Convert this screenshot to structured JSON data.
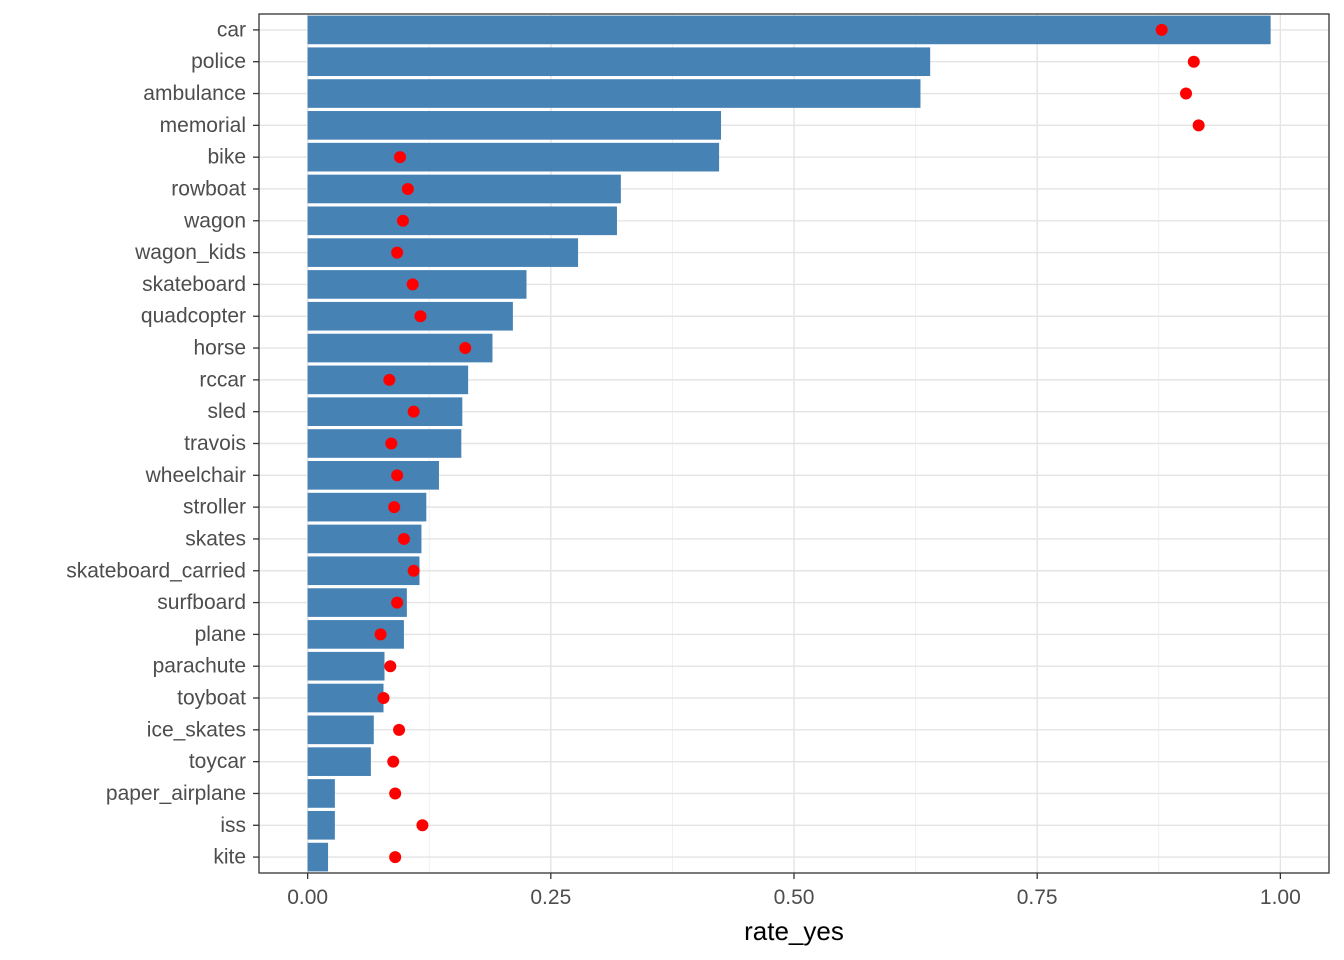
{
  "chart_data": {
    "type": "bar",
    "orientation": "horizontal",
    "title": "",
    "xlabel": "rate_yes",
    "ylabel": "",
    "xlim": [
      -0.05,
      1.05
    ],
    "x_ticks": [
      0,
      0.25,
      0.5,
      0.75,
      1.0
    ],
    "x_tick_labels": [
      "0.00",
      "0.25",
      "0.50",
      "0.75",
      "1.00"
    ],
    "grid": true,
    "legend": "none",
    "categories": [
      "car",
      "police",
      "ambulance",
      "memorial",
      "bike",
      "rowboat",
      "wagon",
      "wagon_kids",
      "skateboard",
      "quadcopter",
      "horse",
      "rccar",
      "sled",
      "travois",
      "wheelchair",
      "stroller",
      "skates",
      "skateboard_carried",
      "surfboard",
      "plane",
      "parachute",
      "toyboat",
      "ice_skates",
      "toycar",
      "paper_airplane",
      "iss",
      "kite"
    ],
    "series": [
      {
        "mark": "bar",
        "color": "#4682B4",
        "values": [
          0.99,
          0.64,
          0.63,
          0.425,
          0.423,
          0.322,
          0.318,
          0.278,
          0.225,
          0.211,
          0.19,
          0.165,
          0.159,
          0.158,
          0.135,
          0.122,
          0.117,
          0.115,
          0.102,
          0.099,
          0.079,
          0.078,
          0.068,
          0.065,
          0.028,
          0.028,
          0.021
        ]
      },
      {
        "mark": "point",
        "color": "#FF0000",
        "values": [
          0.878,
          0.911,
          0.903,
          0.916,
          0.095,
          0.103,
          0.098,
          0.092,
          0.108,
          0.116,
          0.162,
          0.084,
          0.109,
          0.086,
          0.092,
          0.089,
          0.099,
          0.109,
          0.092,
          0.075,
          0.085,
          0.078,
          0.094,
          0.088,
          0.09,
          0.118,
          0.09
        ]
      }
    ]
  }
}
